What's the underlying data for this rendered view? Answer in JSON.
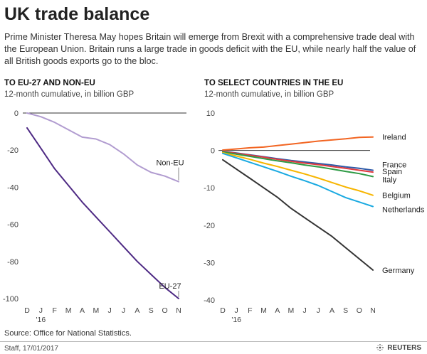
{
  "title": "UK trade balance",
  "subtitle": "Prime Minister Theresa May hopes Britain will emerge from Brexit with a comprehensive trade deal with the European Union. Britain runs a large trade in goods deficit with the EU, while nearly half the value of all British goods exports go to the bloc.",
  "source": "Source: Office for National Statistics.",
  "credit": "Staff,  17/01/2017",
  "brand": "REUTERS",
  "chart_data": [
    {
      "type": "line",
      "title": "TO EU-27 AND NON-EU",
      "subtitle": "12-month cumulative, in billion GBP",
      "xlabel": "",
      "ylabel": "",
      "x": [
        "D",
        "J",
        "F",
        "M",
        "A",
        "M",
        "J",
        "J",
        "A",
        "S",
        "O",
        "N"
      ],
      "x_year_label": "'16",
      "ylim": [
        -100,
        0
      ],
      "yticks": [
        0,
        -20,
        -40,
        -60,
        -80,
        -100
      ],
      "grid": false,
      "series": [
        {
          "name": "Non-EU",
          "color": "#b19cd0",
          "values": [
            0,
            -2,
            -5,
            -9,
            -13,
            -14,
            -17,
            -22,
            -28,
            -32,
            -34,
            -37
          ]
        },
        {
          "name": "EU-27",
          "color": "#4e2a84",
          "values": [
            -8,
            -19,
            -30,
            -39,
            -48,
            -56,
            -64,
            -72,
            -80,
            -87,
            -94,
            -100
          ]
        }
      ]
    },
    {
      "type": "line",
      "title": "TO SELECT COUNTRIES IN THE EU",
      "subtitle": "12-month cumulative, in billion GBP",
      "xlabel": "",
      "ylabel": "",
      "x": [
        "D",
        "J",
        "F",
        "M",
        "A",
        "M",
        "J",
        "J",
        "A",
        "S",
        "O",
        "N"
      ],
      "x_year_label": "'16",
      "ylim": [
        -40,
        10
      ],
      "yticks": [
        10,
        0,
        -10,
        -20,
        -30,
        -40
      ],
      "grid": false,
      "series": [
        {
          "name": "Ireland",
          "color": "#f26522",
          "values": [
            0.1,
            0.4,
            0.7,
            0.9,
            1.3,
            1.7,
            2.1,
            2.5,
            2.8,
            3.1,
            3.5,
            3.6
          ]
        },
        {
          "name": "France",
          "color": "#2e5aa8",
          "values": [
            -0.2,
            -0.7,
            -1.2,
            -1.7,
            -2.2,
            -2.7,
            -3.1,
            -3.5,
            -3.9,
            -4.4,
            -4.8,
            -5.3
          ]
        },
        {
          "name": "Spain",
          "color": "#e03a3e",
          "values": [
            -0.3,
            -0.8,
            -1.3,
            -1.8,
            -2.4,
            -2.9,
            -3.4,
            -3.8,
            -4.3,
            -4.8,
            -5.3,
            -5.8
          ]
        },
        {
          "name": "Italy",
          "color": "#2e9a44",
          "values": [
            -0.4,
            -1.0,
            -1.6,
            -2.2,
            -2.8,
            -3.3,
            -3.9,
            -4.4,
            -5.0,
            -5.6,
            -6.2,
            -7.0
          ]
        },
        {
          "name": "Belgium",
          "color": "#f7b500",
          "values": [
            -0.6,
            -1.5,
            -2.4,
            -3.4,
            -4.3,
            -5.3,
            -6.3,
            -7.4,
            -8.6,
            -9.8,
            -10.8,
            -12.0
          ]
        },
        {
          "name": "Netherlands",
          "color": "#19a9e1",
          "values": [
            -0.8,
            -2.0,
            -3.2,
            -4.4,
            -5.6,
            -6.9,
            -8.1,
            -9.4,
            -11.0,
            -12.6,
            -13.8,
            -15.0
          ]
        },
        {
          "name": "Germany",
          "color": "#333333",
          "values": [
            -2.5,
            -5.0,
            -7.5,
            -10.0,
            -12.5,
            -15.5,
            -18.0,
            -20.5,
            -23.0,
            -26.0,
            -29.0,
            -32.0
          ]
        }
      ]
    }
  ]
}
